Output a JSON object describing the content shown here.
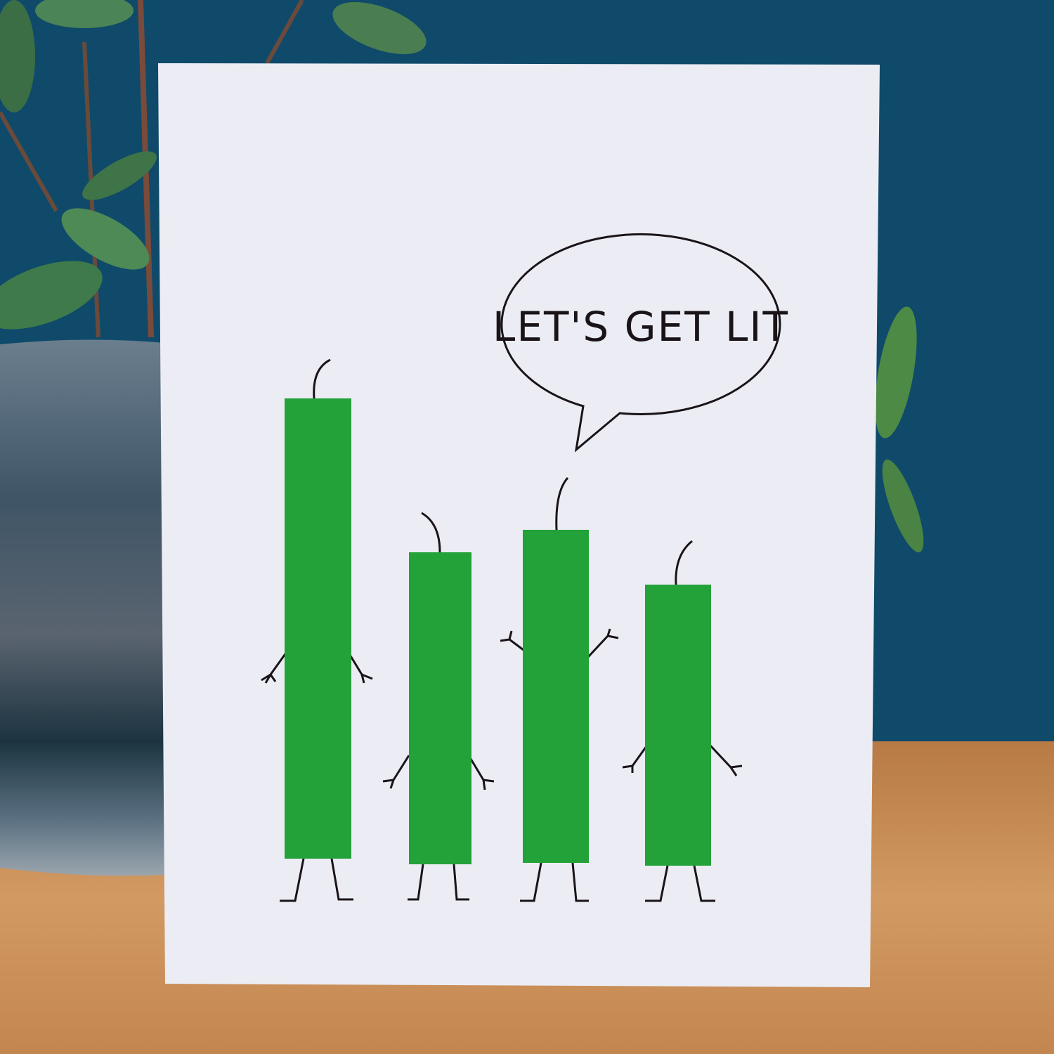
{
  "card": {
    "speech_text": "LET'S GET LIT",
    "candle_color": "#22a238",
    "card_color": "#ecedf4"
  },
  "scene": {
    "wall_color": "#0f4a6a",
    "table_color": "#c68a55",
    "objects": [
      "plant",
      "ceramic-pot",
      "greeting-card"
    ]
  }
}
